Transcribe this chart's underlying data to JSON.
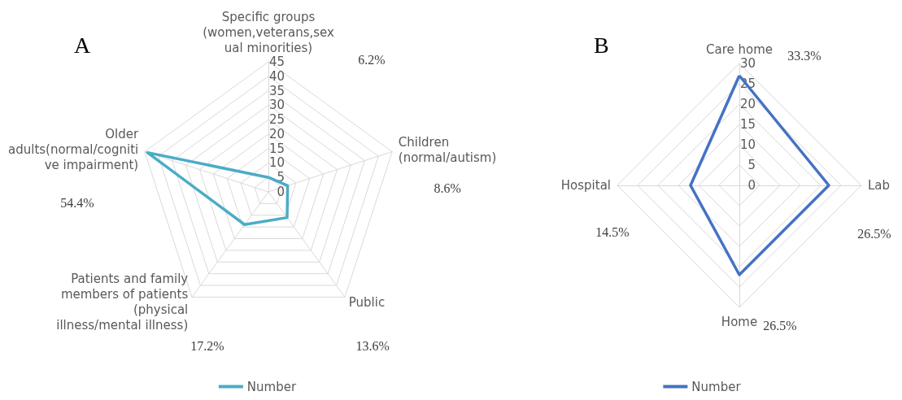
{
  "chart_data": [
    {
      "type": "radar",
      "title": "A",
      "categories": [
        "Specific groups\n(women,veterans,sex\nual minorities)",
        "Children\n(normal/autism)",
        "Public",
        "Patients and family\nmembers of patients\n(physical\nillness/mental illness)",
        "Older\nadults(normal/cogniti\nve impairment)"
      ],
      "series": [
        {
          "name": "Number",
          "color": "#4bacc6",
          "values": [
            5,
            7,
            11,
            14,
            44
          ]
        }
      ],
      "ylim": [
        0,
        45
      ],
      "yticks": [
        0,
        5,
        10,
        15,
        20,
        25,
        30,
        35,
        40,
        45
      ],
      "grid": true,
      "legend": "bottom",
      "marker": "none",
      "line_style": "solid",
      "annotations": [
        "6.2%",
        "8.6%",
        "13.6%",
        "17.2%",
        "54.4%"
      ]
    },
    {
      "type": "radar",
      "title": "B",
      "categories": [
        "Care home",
        "Lab",
        "Home",
        "Hospital"
      ],
      "series": [
        {
          "name": "Number",
          "color": "#4472c4",
          "values": [
            27,
            22,
            22,
            12
          ]
        }
      ],
      "ylim": [
        0,
        30
      ],
      "yticks": [
        0,
        5,
        10,
        15,
        20,
        25,
        30
      ],
      "grid": true,
      "legend": "bottom",
      "marker": "none",
      "line_style": "solid",
      "annotations": [
        "33.3%",
        "26.5%",
        "26.5%",
        "14.5%"
      ]
    }
  ]
}
